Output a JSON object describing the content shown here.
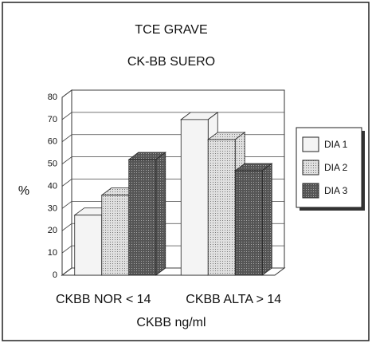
{
  "chart_data": {
    "type": "bar3d",
    "title": "TCE GRAVE",
    "subtitle": "CK-BB SUERO",
    "y_label": "%",
    "x_label": "CKBB ng/ml",
    "categories": [
      "CKBB NOR < 14",
      "CKBB ALTA > 14"
    ],
    "series": [
      {
        "name": "DIA 1",
        "color": "#f2f2f2",
        "values": [
          27,
          70
        ]
      },
      {
        "name": "DIA 2",
        "color": "#c8c8c8",
        "values": [
          36,
          61
        ]
      },
      {
        "name": "DIA 3",
        "color": "#5a5a5a",
        "values": [
          52,
          47
        ]
      }
    ],
    "ylim": [
      0,
      80
    ],
    "yticks": [
      0,
      10,
      20,
      30,
      40,
      50,
      60,
      70,
      80
    ],
    "grid": true,
    "legend": "right"
  }
}
